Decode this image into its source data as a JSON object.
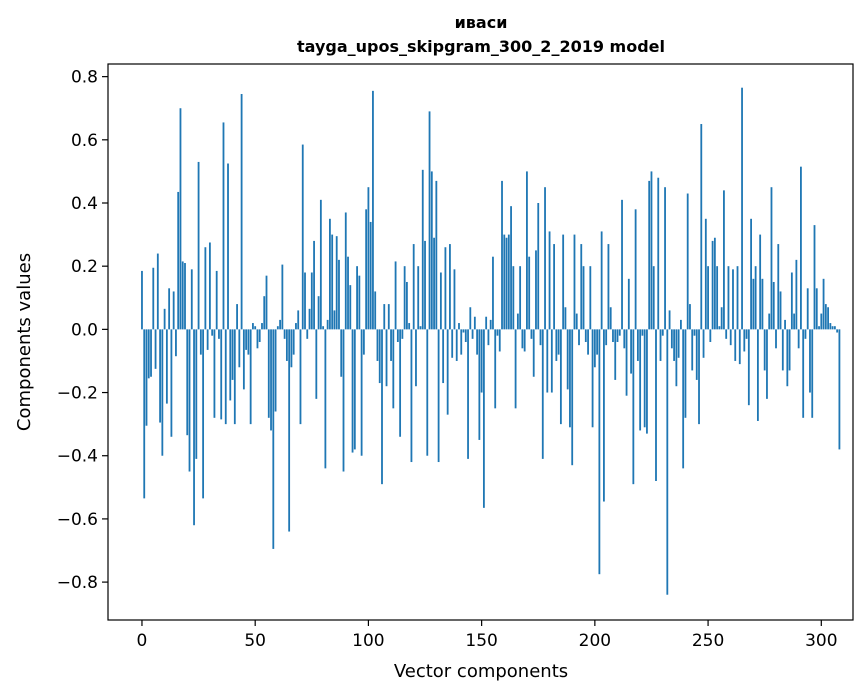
{
  "chart_data": {
    "type": "bar",
    "title": "иваси",
    "subtitle": "tayga_upos_skipgram_300_2_2019 model",
    "xlabel": "Vector components",
    "ylabel": "Components values",
    "xlim": [
      -15,
      314
    ],
    "ylim": [
      -0.92,
      0.84
    ],
    "xticks": [
      0,
      50,
      100,
      150,
      200,
      250,
      300
    ],
    "xtick_labels": [
      "0",
      "50",
      "100",
      "150",
      "200",
      "250",
      "300"
    ],
    "yticks": [
      -0.8,
      -0.6,
      -0.4,
      -0.2,
      0.0,
      0.2,
      0.4,
      0.6,
      0.8
    ],
    "ytick_labels": [
      "−0.8",
      "−0.6",
      "−0.4",
      "−0.2",
      "0.0",
      "0.2",
      "0.4",
      "0.6",
      "0.8"
    ],
    "grid": false,
    "bar_color": "#1f77b4",
    "values": [
      0.185,
      -0.535,
      -0.305,
      -0.155,
      -0.15,
      0.195,
      -0.125,
      0.24,
      -0.295,
      -0.4,
      0.065,
      -0.235,
      0.13,
      -0.34,
      0.12,
      -0.085,
      0.435,
      0.7,
      0.215,
      0.21,
      -0.335,
      -0.45,
      0.19,
      -0.62,
      -0.41,
      0.53,
      -0.08,
      -0.535,
      0.26,
      -0.065,
      0.275,
      -0.02,
      -0.28,
      0.185,
      -0.03,
      -0.285,
      0.655,
      -0.3,
      0.525,
      -0.225,
      -0.16,
      -0.3,
      0.08,
      -0.12,
      0.745,
      -0.19,
      -0.065,
      -0.08,
      -0.3,
      0.02,
      0.01,
      -0.06,
      -0.04,
      0.02,
      0.105,
      0.17,
      -0.28,
      -0.32,
      -0.695,
      -0.26,
      0.01,
      0.03,
      0.205,
      -0.03,
      -0.1,
      -0.64,
      -0.12,
      -0.08,
      0.02,
      0.06,
      -0.3,
      0.585,
      0.18,
      -0.03,
      0.065,
      0.18,
      0.28,
      -0.22,
      0.105,
      0.41,
      0.01,
      -0.44,
      0.03,
      0.35,
      0.3,
      0.06,
      0.295,
      0.22,
      -0.15,
      -0.45,
      0.37,
      0.23,
      0.14,
      -0.39,
      -0.38,
      0.2,
      0.17,
      -0.4,
      -0.08,
      0.38,
      0.45,
      0.34,
      0.755,
      0.12,
      -0.1,
      -0.17,
      -0.49,
      0.08,
      -0.18,
      0.08,
      -0.1,
      -0.25,
      0.215,
      -0.04,
      -0.34,
      -0.03,
      0.2,
      0.15,
      0.02,
      -0.42,
      0.27,
      -0.18,
      0.2,
      0.01,
      0.505,
      0.28,
      -0.4,
      0.69,
      0.5,
      0.29,
      0.47,
      -0.42,
      0.18,
      -0.17,
      0.26,
      -0.27,
      0.27,
      -0.09,
      0.19,
      -0.1,
      0.02,
      -0.08,
      -0.01,
      -0.04,
      -0.41,
      0.07,
      -0.03,
      0.04,
      -0.08,
      -0.35,
      -0.2,
      -0.565,
      0.04,
      -0.05,
      0.03,
      0.23,
      -0.25,
      -0.02,
      -0.07,
      0.47,
      0.3,
      0.29,
      0.3,
      0.39,
      0.2,
      -0.25,
      0.05,
      0.2,
      -0.06,
      -0.07,
      0.5,
      0.23,
      -0.03,
      -0.15,
      0.25,
      0.4,
      -0.05,
      -0.41,
      0.45,
      -0.2,
      0.31,
      -0.2,
      0.27,
      -0.1,
      -0.08,
      -0.3,
      0.3,
      0.07,
      -0.19,
      -0.31,
      -0.43,
      0.3,
      0.05,
      -0.05,
      0.27,
      0.2,
      -0.04,
      -0.08,
      0.2,
      -0.31,
      -0.12,
      -0.08,
      -0.775,
      0.31,
      -0.545,
      -0.05,
      0.27,
      0.07,
      -0.04,
      -0.16,
      -0.04,
      -0.02,
      0.41,
      -0.06,
      -0.21,
      0.16,
      -0.14,
      -0.49,
      0.38,
      -0.1,
      -0.32,
      -0.02,
      -0.31,
      -0.33,
      0.47,
      0.5,
      0.2,
      -0.48,
      0.48,
      -0.1,
      -0.02,
      0.45,
      -0.84,
      0.06,
      -0.06,
      -0.1,
      -0.18,
      -0.09,
      0.03,
      -0.44,
      -0.28,
      0.43,
      0.08,
      -0.13,
      -0.02,
      -0.16,
      -0.3,
      0.65,
      -0.09,
      0.35,
      0.2,
      -0.04,
      0.28,
      0.29,
      0.2,
      0.01,
      0.07,
      0.44,
      -0.03,
      0.2,
      -0.05,
      0.19,
      -0.1,
      0.2,
      -0.11,
      0.765,
      -0.07,
      -0.03,
      -0.24,
      0.35,
      0.16,
      0.2,
      -0.29,
      0.3,
      0.16,
      -0.13,
      -0.22,
      0.05,
      0.45,
      0.15,
      -0.06,
      0.27,
      0.12,
      -0.13,
      0.03,
      -0.18,
      -0.13,
      0.18,
      0.05,
      0.22,
      -0.06,
      0.515,
      -0.28,
      -0.03,
      0.13,
      -0.2,
      -0.28,
      0.33,
      0.13,
      0.01,
      0.05,
      0.16,
      0.08,
      0.07,
      0.02,
      0.01,
      0.01,
      -0.01,
      -0.38
    ]
  }
}
